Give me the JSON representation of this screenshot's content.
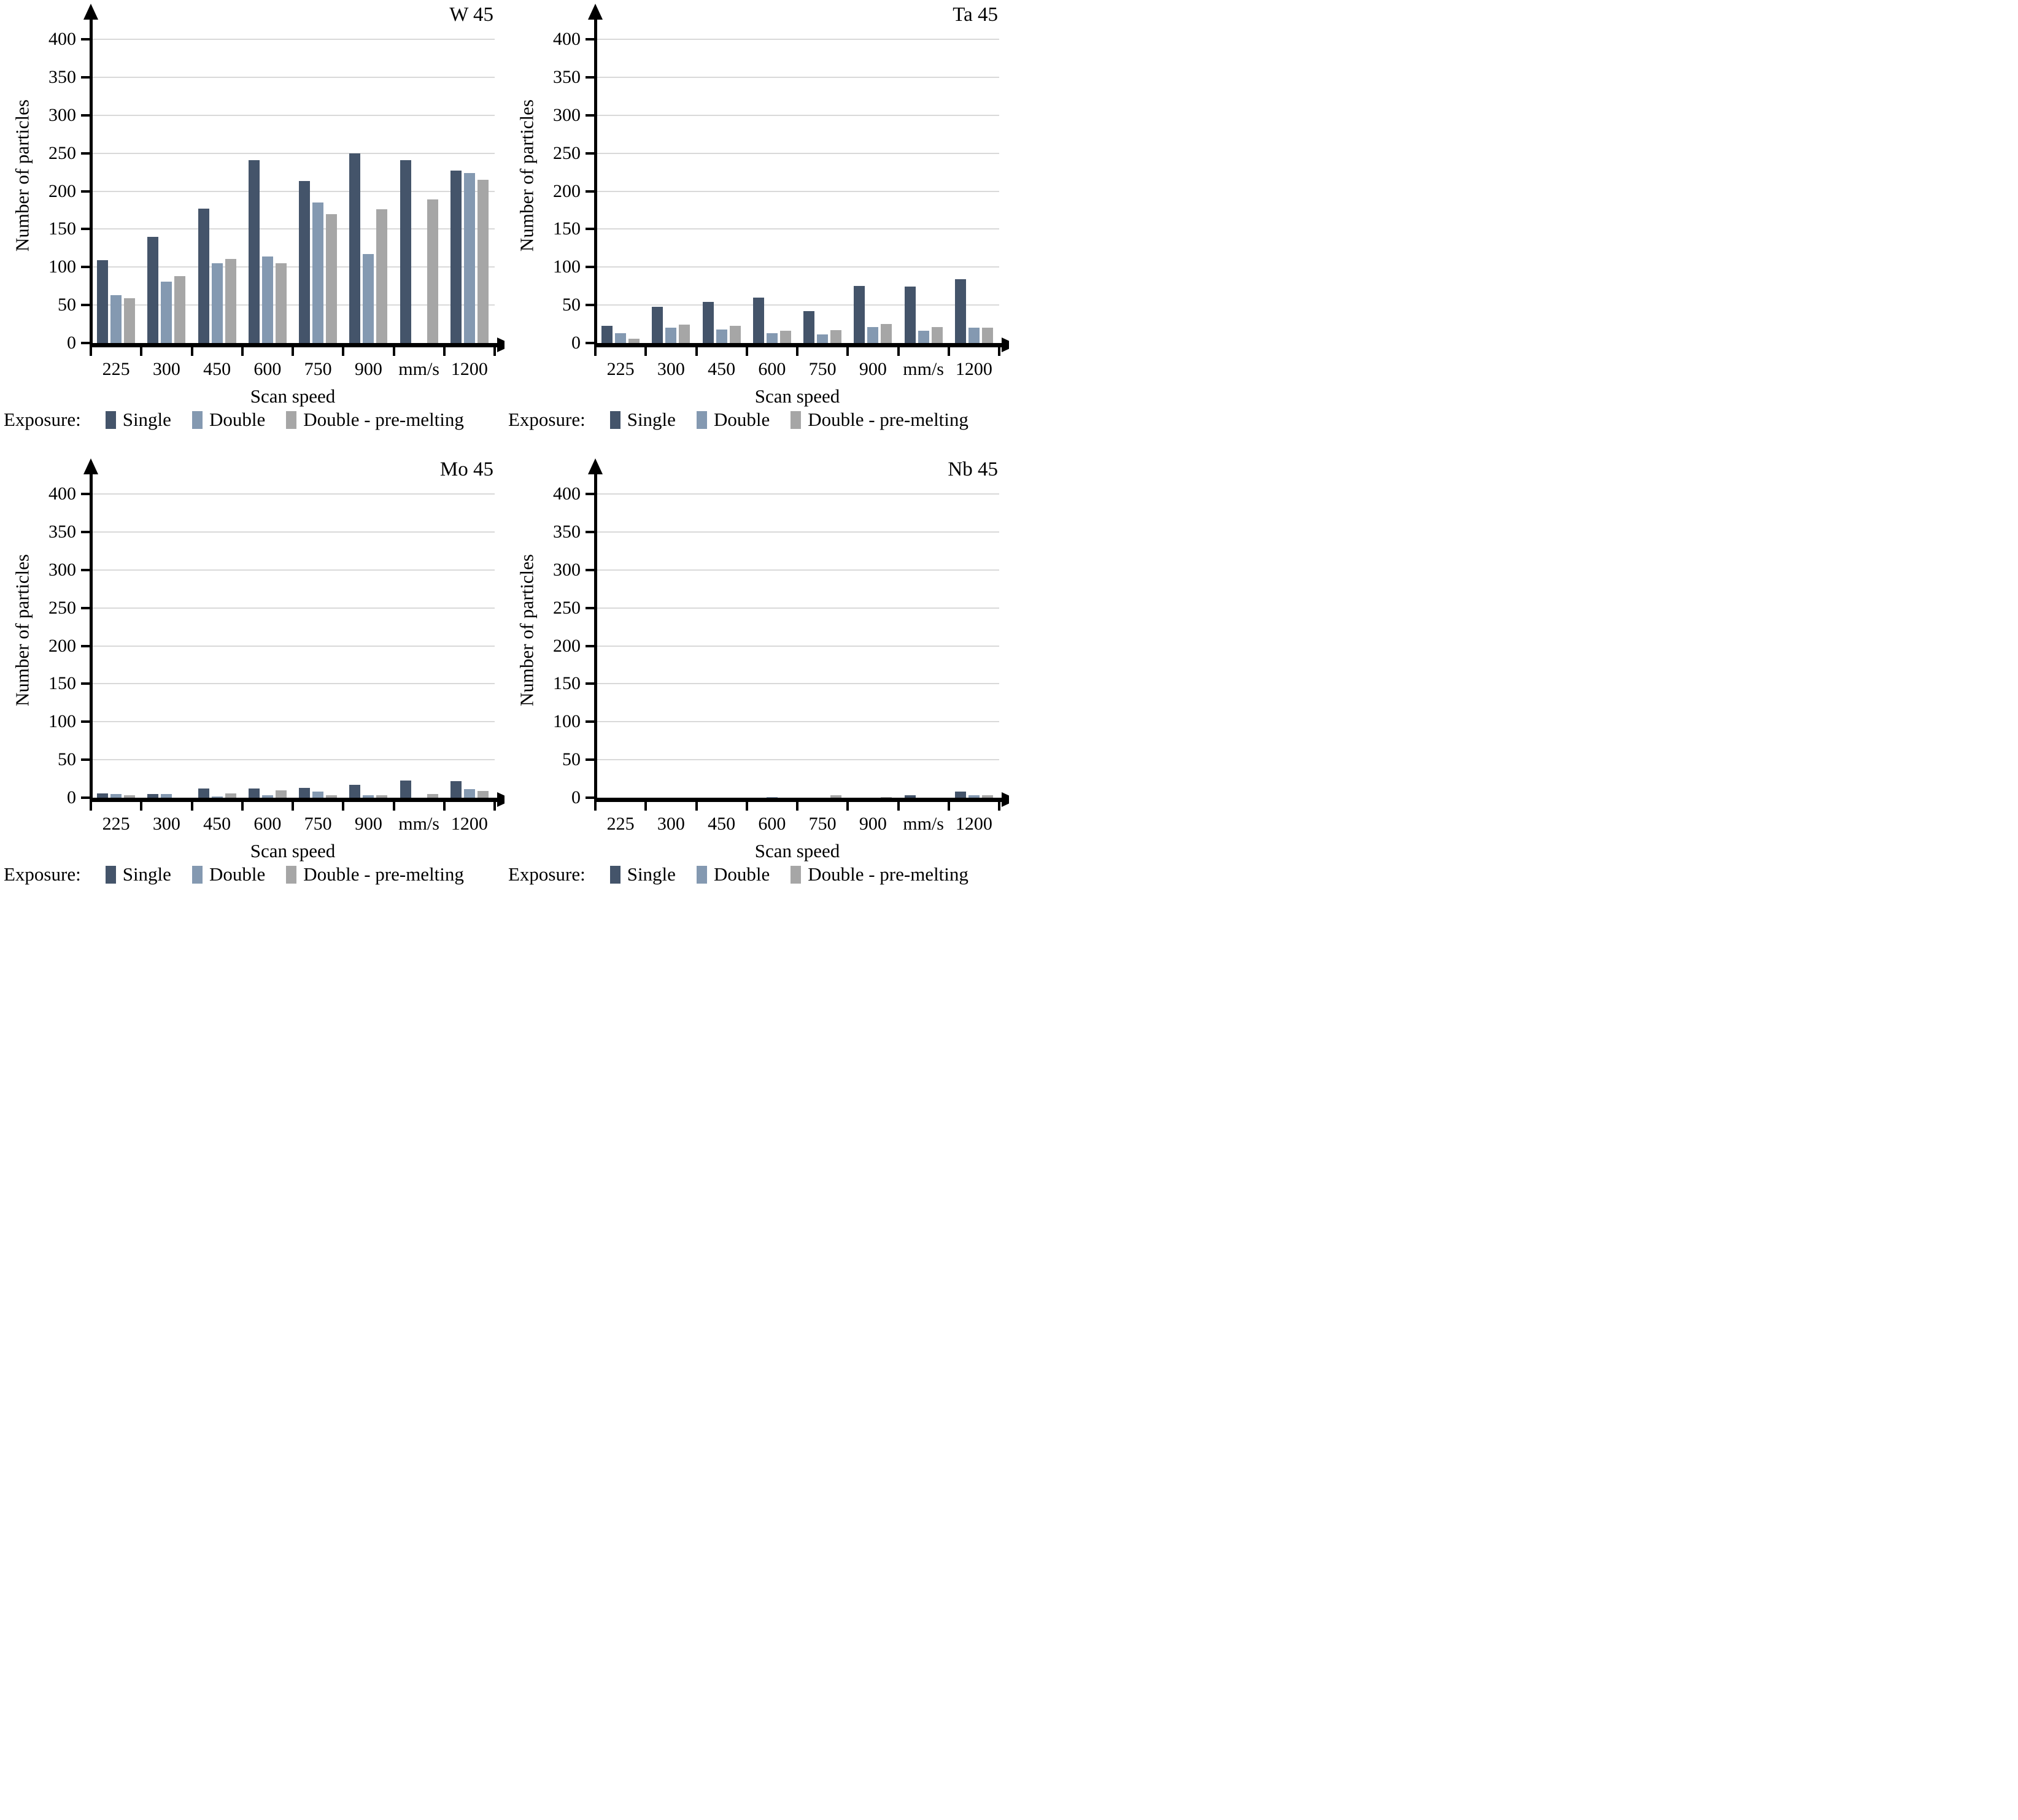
{
  "page": {
    "background": "#ffffff",
    "grid_color": "#D9D9D9",
    "axis_color": "#000000"
  },
  "axes": {
    "ylabel": "Number of particles",
    "xlabel": "Scan speed",
    "yticks": [
      0,
      50,
      100,
      150,
      200,
      250,
      300,
      350,
      400
    ],
    "ylim": [
      0,
      400
    ],
    "grid": "horizontal"
  },
  "legend": {
    "title": "Exposure:",
    "position": "bottom",
    "items": [
      {
        "label": "Single",
        "color": "#44546A"
      },
      {
        "label": "Double",
        "color": "#8499B1"
      },
      {
        "label": "Double - pre-melting",
        "color": "#A6A6A6"
      }
    ]
  },
  "chart_data": [
    {
      "type": "bar",
      "title": "W 45",
      "categories": [
        "225",
        "300",
        "450",
        "600",
        "750",
        "900",
        "mm/s",
        "1200"
      ],
      "series": [
        {
          "name": "Single",
          "values": [
            109,
            140,
            177,
            241,
            213,
            250,
            241,
            227
          ]
        },
        {
          "name": "Double",
          "values": [
            63,
            81,
            105,
            114,
            185,
            117,
            0,
            224
          ]
        },
        {
          "name": "Double - pre-melting",
          "values": [
            59,
            88,
            111,
            105,
            170,
            176,
            189,
            215
          ]
        }
      ],
      "xlabel": "Scan speed",
      "ylabel": "Number of particles",
      "ylim": [
        0,
        400
      ]
    },
    {
      "type": "bar",
      "title": "Ta 45",
      "categories": [
        "225",
        "300",
        "450",
        "600",
        "750",
        "900",
        "mm/s",
        "1200"
      ],
      "series": [
        {
          "name": "Single",
          "values": [
            23,
            48,
            54,
            60,
            42,
            75,
            74,
            84
          ]
        },
        {
          "name": "Double",
          "values": [
            13,
            20,
            18,
            13,
            11,
            21,
            16,
            20
          ]
        },
        {
          "name": "Double - pre-melting",
          "values": [
            6,
            24,
            23,
            16,
            17,
            25,
            21,
            20
          ]
        }
      ],
      "xlabel": "Scan speed",
      "ylabel": "Number of particles",
      "ylim": [
        0,
        400
      ]
    },
    {
      "type": "bar",
      "title": "Mo 45",
      "categories": [
        "225",
        "300",
        "450",
        "600",
        "750",
        "900",
        "mm/s",
        "1200"
      ],
      "series": [
        {
          "name": "Single",
          "values": [
            6,
            5,
            12,
            12,
            13,
            17,
            23,
            22
          ]
        },
        {
          "name": "Double",
          "values": [
            5,
            5,
            2,
            3,
            8,
            3,
            0,
            11
          ]
        },
        {
          "name": "Double - pre-melting",
          "values": [
            3,
            0,
            6,
            10,
            3,
            3,
            5,
            9
          ]
        }
      ],
      "xlabel": "Scan speed",
      "ylabel": "Number of particles",
      "ylim": [
        0,
        400
      ]
    },
    {
      "type": "bar",
      "title": "Nb 45",
      "categories": [
        "225",
        "300",
        "450",
        "600",
        "750",
        "900",
        "mm/s",
        "1200"
      ],
      "series": [
        {
          "name": "Single",
          "values": [
            0,
            0,
            0,
            0,
            0,
            0,
            3,
            8
          ]
        },
        {
          "name": "Double",
          "values": [
            0,
            0,
            0,
            1,
            0,
            0,
            0,
            3
          ]
        },
        {
          "name": "Double - pre-melting",
          "values": [
            0,
            0,
            0,
            0,
            3,
            1,
            0,
            3
          ]
        }
      ],
      "xlabel": "Scan speed",
      "ylabel": "Number of particles",
      "ylim": [
        0,
        400
      ]
    }
  ]
}
